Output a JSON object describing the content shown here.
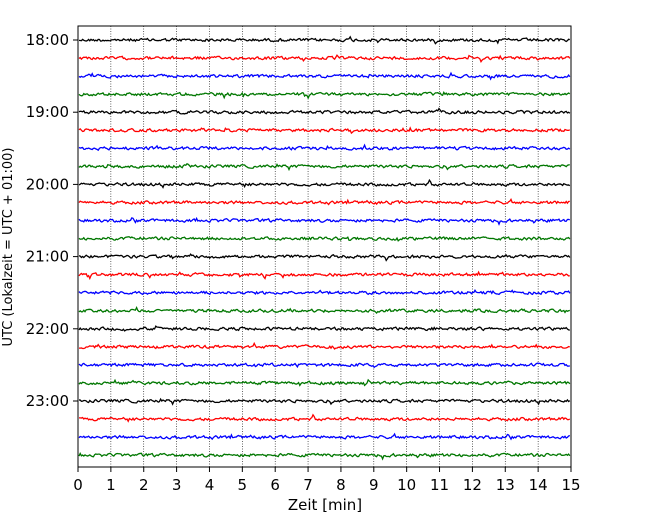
{
  "chart_data": {
    "type": "line",
    "title": "",
    "xlabel": "Zeit  [min]",
    "ylabel": "UTC (Lokalzeit = UTC + 01:00)",
    "xlim": [
      0,
      15
    ],
    "x_ticks": [
      "0",
      "1",
      "2",
      "3",
      "4",
      "5",
      "6",
      "7",
      "8",
      "9",
      "10",
      "11",
      "12",
      "13",
      "14",
      "15"
    ],
    "y_tick_labels": [
      "18:00",
      "19:00",
      "20:00",
      "21:00",
      "22:00",
      "23:00"
    ],
    "grid": "vertical dotted",
    "trace_start": "18:00",
    "trace_interval_minutes": 15,
    "trace_count": 24,
    "trace_colors": [
      "#000000",
      "#ff0000",
      "#0000ff",
      "#007700"
    ]
  }
}
